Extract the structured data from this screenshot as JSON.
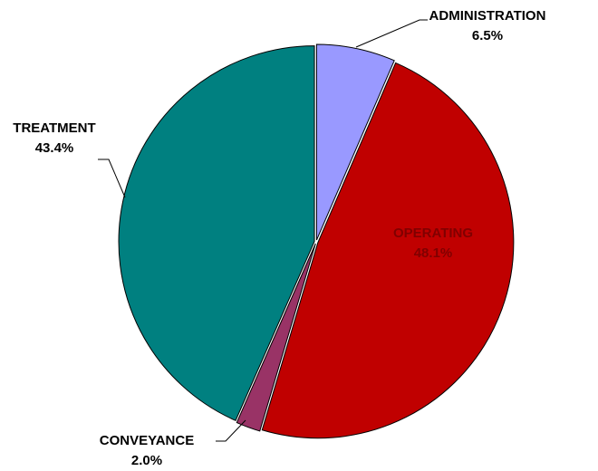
{
  "chart_data": {
    "type": "pie",
    "categories": [
      "ADMINISTRATION",
      "OPERATING",
      "CONVEYANCE",
      "TREATMENT"
    ],
    "values": [
      6.5,
      48.1,
      2.0,
      43.4
    ],
    "value_labels": [
      "6.5%",
      "48.1%",
      "2.0%",
      "43.4%"
    ],
    "colors": [
      "#9999ff",
      "#c00000",
      "#993366",
      "#008080"
    ]
  }
}
